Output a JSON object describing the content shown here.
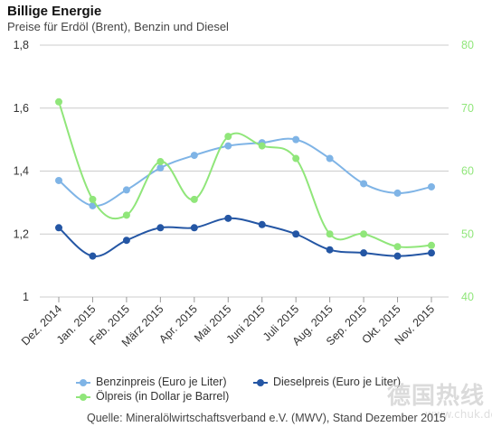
{
  "header": {
    "title": "Billige Energie",
    "subtitle": "Preise für Erdöl (Brent), Benzin und Diesel"
  },
  "footer": {
    "source": "Quelle: Mineralölwirtschaftsverband e.V. (MWV), Stand Dezember 2015",
    "watermark": "德国热线",
    "watermark_url": "www.chuk.de"
  },
  "colors": {
    "benzin": "#7fb4e6",
    "diesel": "#2456a4",
    "oel": "#90e67a",
    "left_axis_text": "#333333",
    "right_axis_text": "#90e67a",
    "grid": "#cccccc"
  },
  "chart_data": {
    "type": "line",
    "title": "Billige Energie",
    "subtitle": "Preise für Erdöl (Brent), Benzin und Diesel",
    "categories": [
      "Dez. 2014",
      "Jan. 2015",
      "Feb. 2015",
      "März 2015",
      "Apr. 2015",
      "Mai 2015",
      "Juni 2015",
      "Juli 2015",
      "Aug. 2015",
      "Sep. 2015",
      "Okt. 2015",
      "Nov. 2015"
    ],
    "left_axis": {
      "ylim": [
        1,
        1.8
      ],
      "ticks": [
        "1",
        "1,2",
        "1,4",
        "1,6",
        "1,8"
      ],
      "tick_values": [
        1,
        1.2,
        1.4,
        1.6,
        1.8
      ]
    },
    "right_axis": {
      "ylim": [
        40,
        80
      ],
      "ticks": [
        "40",
        "50",
        "60",
        "70",
        "80"
      ],
      "tick_values": [
        40,
        50,
        60,
        70,
        80
      ]
    },
    "grid": true,
    "legend_position": "bottom",
    "series": [
      {
        "name": "Benzinpreis (Euro je Liter)",
        "axis": "left",
        "color": "#7fb4e6",
        "values": [
          1.37,
          1.29,
          1.34,
          1.41,
          1.45,
          1.48,
          1.49,
          1.5,
          1.44,
          1.36,
          1.33,
          1.35
        ]
      },
      {
        "name": "Dieselpreis (Euro je Liter)",
        "axis": "left",
        "color": "#2456a4",
        "values": [
          1.22,
          1.13,
          1.18,
          1.22,
          1.22,
          1.25,
          1.23,
          1.2,
          1.15,
          1.14,
          1.13,
          1.14
        ]
      },
      {
        "name": "Ölpreis (in Dollar je Barrel)",
        "axis": "right",
        "color": "#90e67a",
        "values": [
          71,
          55.5,
          53,
          61.5,
          55.5,
          65.5,
          64,
          62,
          50,
          50,
          48,
          48.2
        ]
      }
    ]
  }
}
